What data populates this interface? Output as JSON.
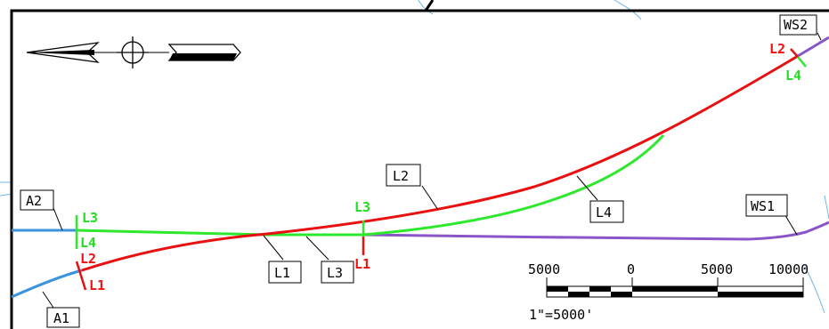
{
  "colors": {
    "border": "#000000",
    "light_blue": "#4da6e0",
    "alignment_blue": "#3b93dd",
    "alignment_green": "#2ee82e",
    "alignment_red": "#e81010",
    "alignment_purple": "#8a55c8",
    "label_red": "#ee1111",
    "label_green": "#22dd22"
  },
  "icons": [
    "north-arrow-icon",
    "crosshair-icon"
  ],
  "callouts": {
    "a1": "A1",
    "a2": "A2",
    "l1": "L1",
    "l2": "L2",
    "l3": "L3",
    "l4": "L4",
    "ws1": "WS1",
    "ws2": "WS2"
  },
  "station_marks": {
    "left_l3": "L3",
    "left_l4": "L4",
    "left_l2": "L2",
    "left_l1": "L1",
    "mid_l3": "L3",
    "mid_l1": "L1",
    "right_l2": "L2",
    "right_l4": "L4"
  },
  "scale_bar": {
    "tick_labels": [
      "5000",
      "0",
      "5000",
      "10000"
    ],
    "note": "1\"=5000'"
  }
}
